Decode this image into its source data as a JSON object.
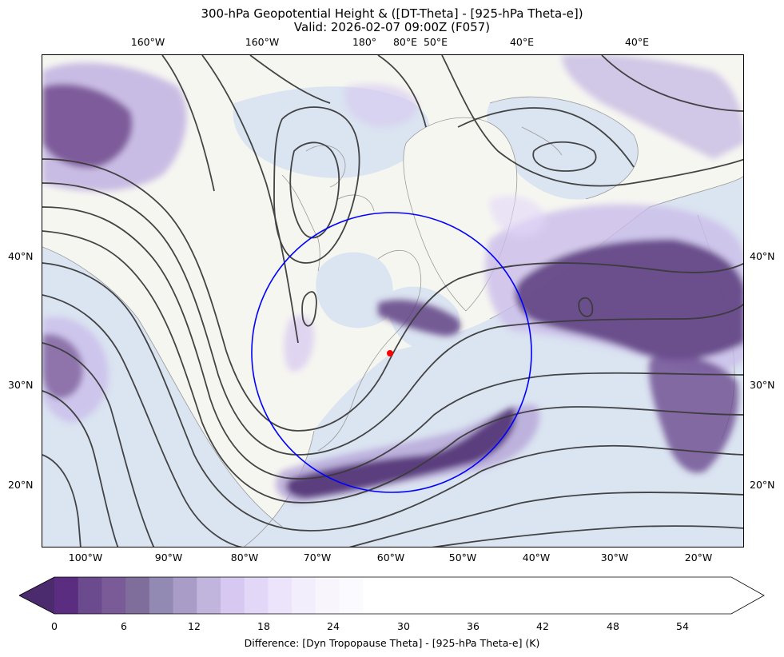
{
  "title_line1": "300-hPa Geopotential Height & ([DT-Theta] - [925-hPa Theta-e])",
  "title_line2": "Valid: 2026-02-07 09:00Z (F057)",
  "top_lon_labels": [
    "160°W",
    "160°W",
    "180°",
    "80°E",
    "50°E",
    "40°E",
    "40°E"
  ],
  "bottom_lon_labels": [
    "100°W",
    "90°W",
    "80°W",
    "70°W",
    "60°W",
    "50°W",
    "40°W",
    "30°W",
    "20°W"
  ],
  "left_lat_labels": [
    "40°N",
    "30°N",
    "20°N"
  ],
  "right_lat_labels": [
    "40°N",
    "30°N",
    "20°N"
  ],
  "colorbar": {
    "ticks": [
      "0",
      "6",
      "12",
      "18",
      "24",
      "30",
      "36",
      "42",
      "48",
      "54"
    ],
    "label": "Difference: [Dyn Tropopause Theta] - [925-hPa Theta-e] (K)",
    "range": [
      -3,
      60
    ],
    "step": 2,
    "color_stops": [
      "#4b2a6e",
      "#5b2d80",
      "#6c4a8e",
      "#7a5a97",
      "#7f6d9c",
      "#928ab2",
      "#a99dc8",
      "#c2b5dd",
      "#d6c8f0",
      "#e3d7f8",
      "#ece4fb",
      "#f3eefc",
      "#f8f5fd",
      "#fbfaff"
    ]
  },
  "map": {
    "ocean_color": "#dbe4f1",
    "land_color": "#f6f6f1",
    "circle_color": "#0000ff",
    "marker_color": "#ff0000",
    "contour_color": "#3a3a3a"
  }
}
